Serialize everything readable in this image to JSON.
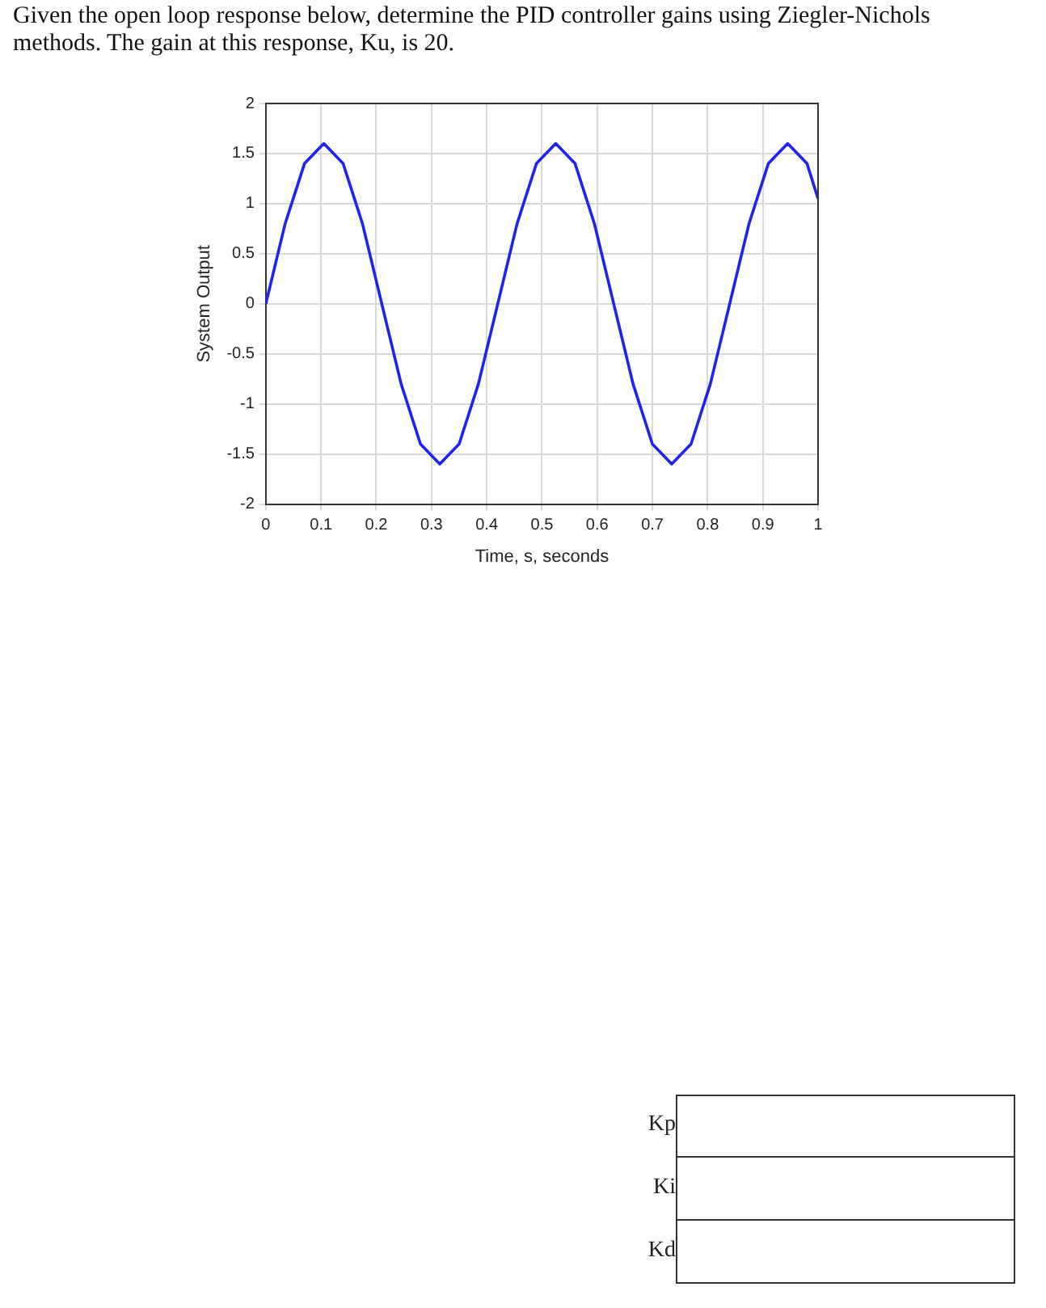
{
  "chart_data": {
    "type": "line",
    "title": "Given the open loop response below, determine the PID controller gains using Ziegler-Nichols methods. The gain at this response, Ku, is 20.",
    "xlabel": "Time, s, seconds",
    "ylabel": "System Output",
    "series": [
      {
        "color": "#2222ee",
        "x": [
          0,
          0.035,
          0.07,
          0.105,
          0.14,
          0.175,
          0.21,
          0.245,
          0.28,
          0.315,
          0.35,
          0.385,
          0.42,
          0.455,
          0.49,
          0.525,
          0.56,
          0.595,
          0.63,
          0.665,
          0.7,
          0.735,
          0.77,
          0.805,
          0.84,
          0.875,
          0.91,
          0.945,
          0.98,
          1
        ],
        "values": [
          0,
          0.8,
          1.4,
          1.6,
          1.4,
          0.8,
          0,
          -0.8,
          -1.4,
          -1.6,
          -1.4,
          -0.8,
          0,
          0.8,
          1.4,
          1.6,
          1.4,
          0.8,
          0,
          -0.8,
          -1.4,
          -1.6,
          -1.4,
          -0.8,
          0,
          0.8,
          1.4,
          1.6,
          1.4,
          1.05
        ]
      }
    ],
    "xlim": [
      0,
      1
    ],
    "xticks": [
      0,
      0.1,
      0.2,
      0.3,
      0.4,
      0.5,
      0.6,
      0.7,
      0.8,
      0.9,
      1
    ],
    "ylim": [
      -2,
      2
    ],
    "yticks": [
      -2,
      -1.5,
      -1,
      -0.5,
      0,
      0.5,
      1,
      1.5,
      2
    ],
    "grid": true,
    "marker": "none",
    "line_style": "solid",
    "annotations": [
      "Kp",
      "Ki",
      "Kd"
    ]
  }
}
